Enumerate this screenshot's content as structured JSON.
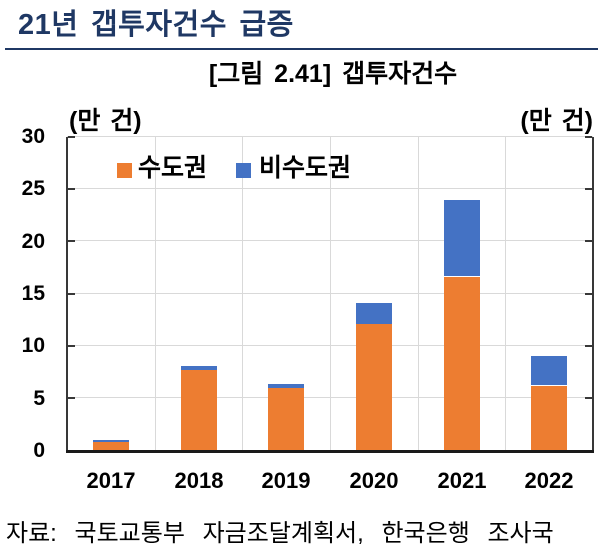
{
  "header": {
    "title": "21년 갭투자건수 급증",
    "underline_color": "#1f3864",
    "title_color": "#1f3864"
  },
  "figure": {
    "title": "[그림 2.41] 갭투자건수",
    "unit_left": "(만 건)",
    "unit_right": "(만 건)",
    "source": "자료: 국토교통부 자금조달계획서, 한국은행 조사국"
  },
  "chart_data": {
    "type": "bar",
    "stacked": true,
    "title": "[그림 2.41] 갭투자건수",
    "categories": [
      "2017",
      "2018",
      "2019",
      "2020",
      "2021",
      "2022"
    ],
    "series": [
      {
        "name": "수도권",
        "color": "#ed7d31",
        "values": [
          0.9,
          7.7,
          6.0,
          12.1,
          16.6,
          6.2
        ]
      },
      {
        "name": "비수도권",
        "color": "#4472c4",
        "values": [
          0.15,
          0.35,
          0.35,
          2.0,
          7.3,
          2.8
        ]
      }
    ],
    "ylabel": "(만 건)",
    "xlabel": "",
    "ylim": [
      0,
      30
    ],
    "yticks": [
      0,
      5,
      10,
      15,
      20,
      25,
      30
    ],
    "grid": true,
    "legend_position": "top-left-inside",
    "gridline_color": "#d9d9d9",
    "axis_color": "#383838",
    "text_color": "#000000"
  }
}
